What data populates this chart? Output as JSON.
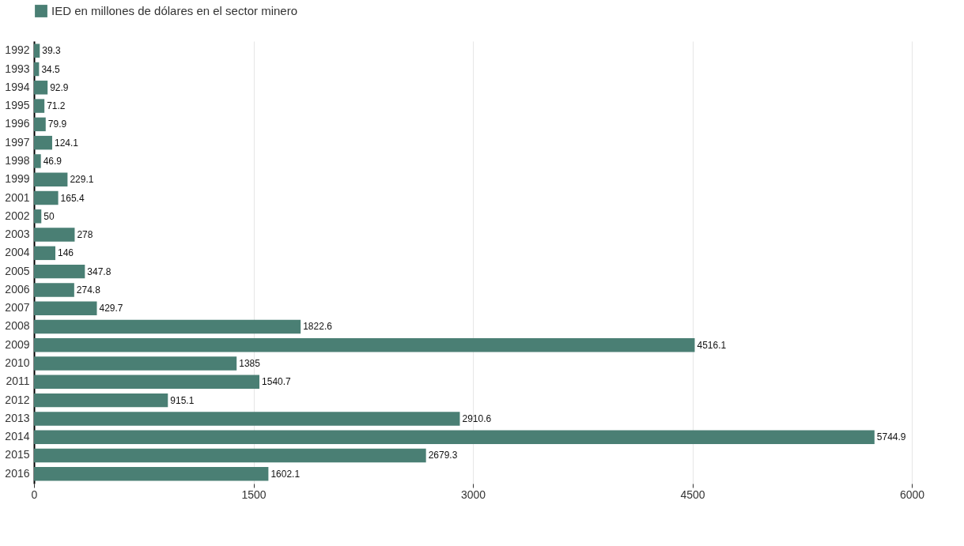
{
  "chart_data": {
    "type": "bar",
    "orientation": "horizontal",
    "categories": [
      "1992",
      "1993",
      "1994",
      "1995",
      "1996",
      "1997",
      "1998",
      "1999",
      "2001",
      "2002",
      "2003",
      "2004",
      "2005",
      "2006",
      "2007",
      "2008",
      "2009",
      "2010",
      "2011",
      "2012",
      "2013",
      "2014",
      "2015",
      "2016"
    ],
    "series": [
      {
        "name": "IED en millones de dólares en el sector minero",
        "color": "#4a7f74",
        "values": [
          39.3,
          34.5,
          92.9,
          71.2,
          79.9,
          124.1,
          46.9,
          229.1,
          165.4,
          50,
          278,
          146,
          347.8,
          274.8,
          429.7,
          1822.6,
          4516.1,
          1385,
          1540.7,
          915.1,
          2910.6,
          5744.9,
          2679.3,
          1602.1
        ]
      }
    ],
    "xlim": [
      0,
      6000
    ],
    "xticks": [
      0,
      1500,
      3000,
      4500,
      6000
    ],
    "grid": "x",
    "legend": "top",
    "data_labels": true
  }
}
